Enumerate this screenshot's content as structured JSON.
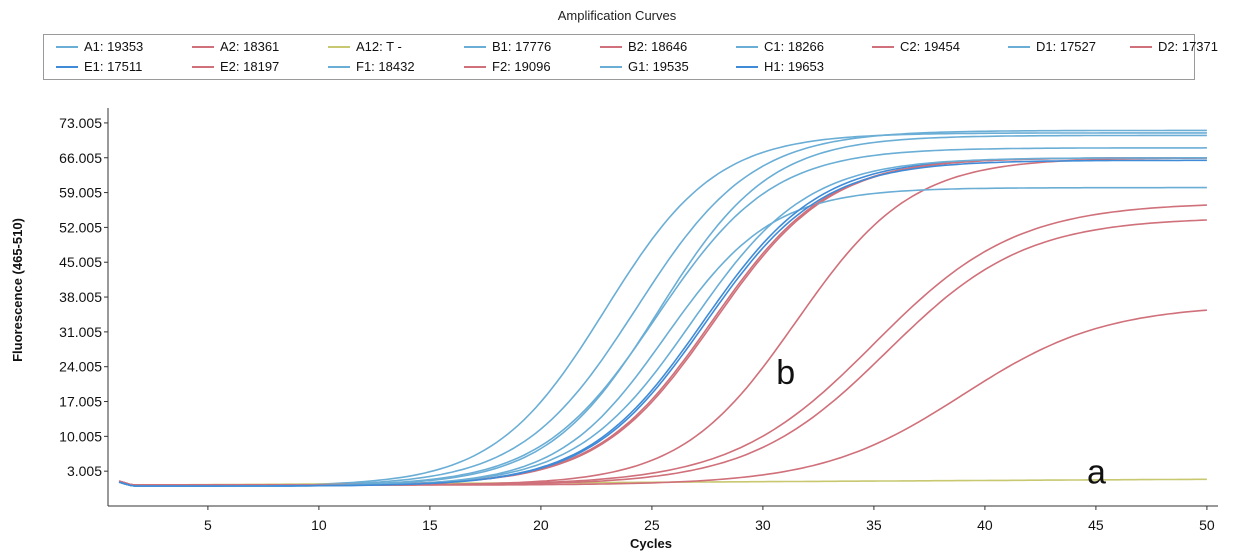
{
  "chart_data": {
    "type": "line",
    "title": "Amplification Curves",
    "xlabel": "Cycles",
    "ylabel": "Fluorescence (465-510)",
    "xlim": [
      0.5,
      50.5
    ],
    "ylim": [
      -3.995,
      76.005
    ],
    "x_ticks": [
      5,
      10,
      15,
      20,
      25,
      30,
      35,
      40,
      45,
      50
    ],
    "y_ticks": [
      3.005,
      10.005,
      17.005,
      24.005,
      31.005,
      38.005,
      45.005,
      52.005,
      59.005,
      66.005,
      73.005
    ],
    "y_tick_labels": [
      "3.005",
      "10.005",
      "17.005",
      "24.005",
      "31.005",
      "38.005",
      "45.005",
      "52.005",
      "59.005",
      "66.005",
      "73.005"
    ],
    "grid": false,
    "legend_position": "top",
    "annotations": [
      {
        "text": "b",
        "x": 30.6,
        "y": 20.5
      },
      {
        "text": "a",
        "x": 44.6,
        "y": 0.5
      }
    ],
    "series": [
      {
        "name": "A1: 19353",
        "color": "#6aaed6",
        "baseline": 0.0,
        "max": 71.0,
        "midpoint": 22.9,
        "slope": 2.5
      },
      {
        "name": "A2: 18361",
        "color": "#d0707a",
        "baseline": 0.2,
        "max": 66.0,
        "midpoint": 27.8,
        "slope": 2.6
      },
      {
        "name": "A12: T -",
        "color": "#c8c870",
        "baseline": 0.2,
        "max": 0.2,
        "midpoint": 25.0,
        "slope": 2.6,
        "drift": 0.024
      },
      {
        "name": "B1: 17776",
        "color": "#6aaed6",
        "baseline": 0.0,
        "max": 71.5,
        "midpoint": 24.3,
        "slope": 2.6
      },
      {
        "name": "B2: 18646",
        "color": "#d0707a",
        "baseline": 0.2,
        "max": 57.0,
        "midpoint": 35.0,
        "slope": 3.2
      },
      {
        "name": "C1: 18266",
        "color": "#6aaed6",
        "baseline": 0.0,
        "max": 68.0,
        "midpoint": 25.2,
        "slope": 2.6
      },
      {
        "name": "C2: 19454",
        "color": "#d0707a",
        "baseline": 0.2,
        "max": 66.0,
        "midpoint": 31.5,
        "slope": 2.6
      },
      {
        "name": "D1: 17527",
        "color": "#6aaed6",
        "baseline": 0.0,
        "max": 60.0,
        "midpoint": 25.6,
        "slope": 2.4
      },
      {
        "name": "D2: 17371",
        "color": "#d0707a",
        "baseline": 0.2,
        "max": 36.5,
        "midpoint": 39.0,
        "slope": 3.2
      },
      {
        "name": "E1: 17511",
        "color": "#3f8bd8",
        "baseline": 0.0,
        "max": 66.0,
        "midpoint": 27.3,
        "slope": 2.6
      },
      {
        "name": "E2: 18197",
        "color": "#d0707a",
        "baseline": 0.2,
        "max": 66.0,
        "midpoint": 27.7,
        "slope": 2.6
      },
      {
        "name": "F1: 18432",
        "color": "#6aaed6",
        "baseline": 0.0,
        "max": 66.0,
        "midpoint": 26.8,
        "slope": 2.6
      },
      {
        "name": "F2: 19096",
        "color": "#d0707a",
        "baseline": 0.2,
        "max": 54.0,
        "midpoint": 35.6,
        "slope": 3.1
      },
      {
        "name": "G1: 19535",
        "color": "#6aaed6",
        "baseline": 0.0,
        "max": 70.5,
        "midpoint": 25.3,
        "slope": 2.5
      },
      {
        "name": "H1: 19653",
        "color": "#3f8bd8",
        "baseline": 0.0,
        "max": 65.5,
        "midpoint": 27.4,
        "slope": 2.6
      }
    ]
  }
}
